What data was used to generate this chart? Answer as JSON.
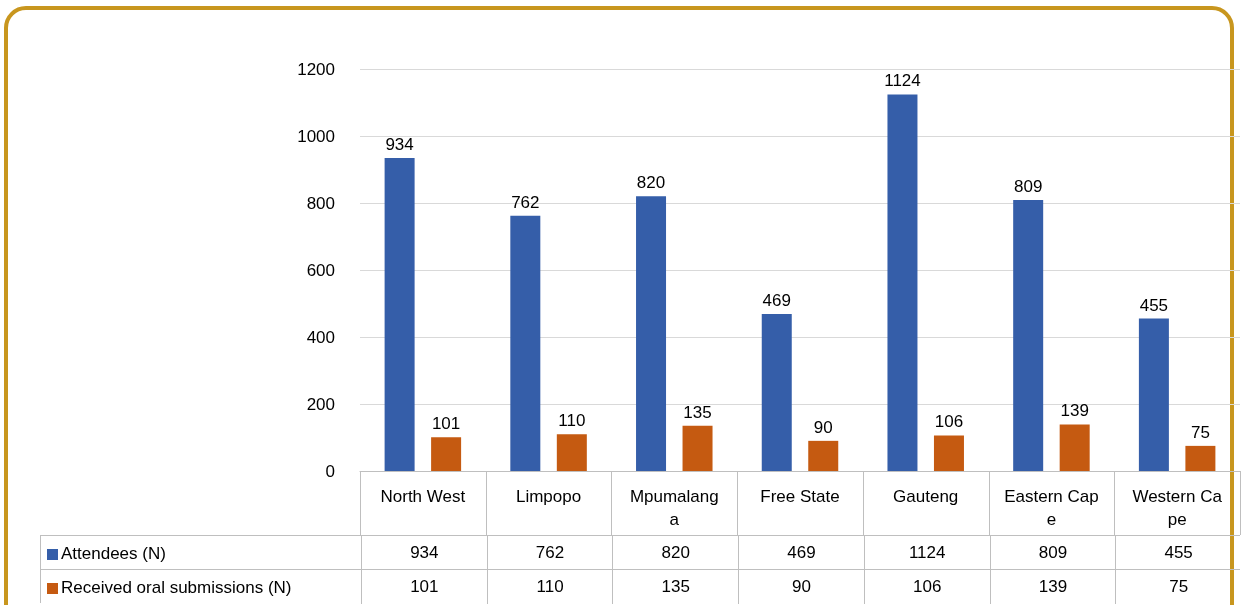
{
  "chart_data": {
    "type": "bar",
    "categories": [
      "North West",
      "Limpopo",
      "Mpumalanga",
      "Free State",
      "Gauteng",
      "Eastern Cape",
      "Western Cape"
    ],
    "series": [
      {
        "name": "Attendees (N)",
        "color": "#355ea9",
        "values": [
          934,
          762,
          820,
          469,
          1124,
          809,
          455
        ],
        "value_labels": [
          "934",
          "762",
          "820",
          "469",
          "1124",
          "809",
          "455"
        ]
      },
      {
        "name": "Received oral submissions (N)",
        "color": "#c55a11",
        "values": [
          101,
          110,
          135,
          90,
          106,
          139,
          75
        ],
        "value_labels": [
          "101",
          "110",
          "135",
          "90",
          "106",
          "139",
          "75"
        ]
      }
    ],
    "ylim": [
      0,
      1200
    ],
    "yticks": [
      0,
      200,
      400,
      600,
      800,
      1000,
      1200
    ],
    "grid": "y",
    "legend": "bottom",
    "data_labels": true
  }
}
